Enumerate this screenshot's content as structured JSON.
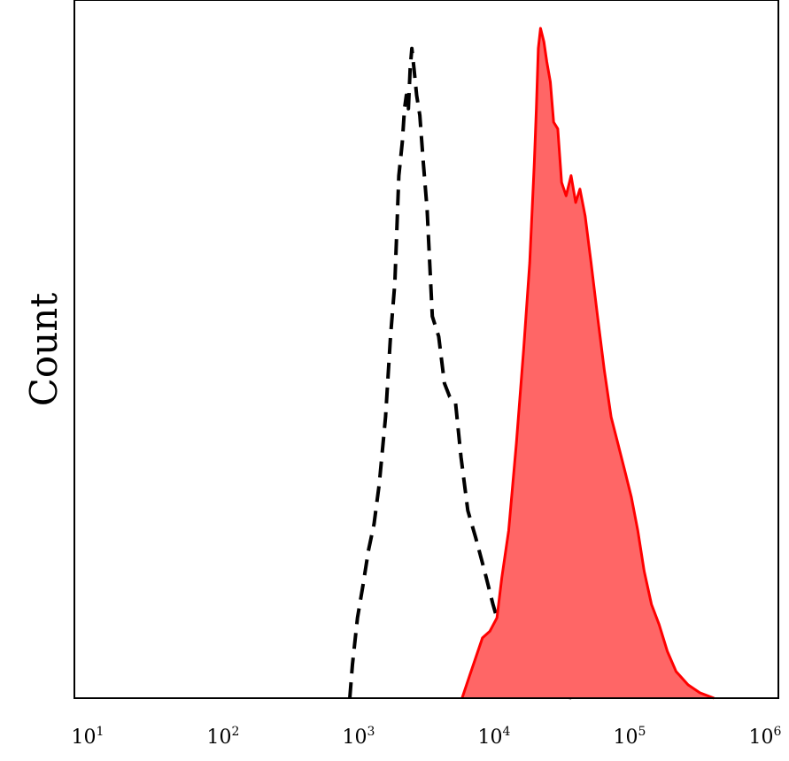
{
  "chart_data": {
    "type": "area",
    "title": "",
    "xlabel": "",
    "ylabel": "Count",
    "x_scale": "log",
    "xlim": [
      10,
      1000000
    ],
    "ylim": [
      0,
      1
    ],
    "grid": false,
    "legend": "none",
    "x_ticks": [
      {
        "value": 10,
        "base": "10",
        "exp": "1"
      },
      {
        "value": 100,
        "base": "10",
        "exp": "2"
      },
      {
        "value": 1000,
        "base": "10",
        "exp": "3"
      },
      {
        "value": 10000,
        "base": "10",
        "exp": "4"
      },
      {
        "value": 100000,
        "base": "10",
        "exp": "5"
      },
      {
        "value": 1000000,
        "base": "10",
        "exp": "6"
      }
    ],
    "series": [
      {
        "style": "dashed",
        "color": "#000000",
        "filled": false,
        "points": [
          [
            860,
            0.0
          ],
          [
            900,
            0.05
          ],
          [
            980,
            0.12
          ],
          [
            1080,
            0.17
          ],
          [
            1180,
            0.22
          ],
          [
            1300,
            0.26
          ],
          [
            1420,
            0.32
          ],
          [
            1580,
            0.42
          ],
          [
            1720,
            0.54
          ],
          [
            1850,
            0.62
          ],
          [
            1980,
            0.78
          ],
          [
            2100,
            0.83
          ],
          [
            2180,
            0.88
          ],
          [
            2250,
            0.9
          ],
          [
            2330,
            0.88
          ],
          [
            2400,
            0.94
          ],
          [
            2470,
            0.97
          ],
          [
            2560,
            0.94
          ],
          [
            2680,
            0.9
          ],
          [
            2830,
            0.87
          ],
          [
            3000,
            0.8
          ],
          [
            3200,
            0.73
          ],
          [
            3500,
            0.57
          ],
          [
            3900,
            0.54
          ],
          [
            4300,
            0.47
          ],
          [
            4700,
            0.45
          ],
          [
            5200,
            0.44
          ],
          [
            5700,
            0.36
          ],
          [
            6400,
            0.28
          ],
          [
            7300,
            0.24
          ],
          [
            8500,
            0.19
          ],
          [
            9800,
            0.14
          ],
          [
            11200,
            0.1
          ],
          [
            12500,
            0.07
          ],
          [
            14500,
            0.05
          ],
          [
            17000,
            0.03
          ],
          [
            20000,
            0.015
          ],
          [
            24000,
            0.008
          ],
          [
            30000,
            0.003
          ],
          [
            40000,
            0.0
          ]
        ]
      },
      {
        "style": "solid-filled",
        "color": "#ff0000",
        "fill": "#ff6666",
        "filled": true,
        "points": [
          [
            5800,
            0.0
          ],
          [
            6500,
            0.03
          ],
          [
            7300,
            0.06
          ],
          [
            8200,
            0.09
          ],
          [
            9300,
            0.1
          ],
          [
            10500,
            0.12
          ],
          [
            11400,
            0.18
          ],
          [
            12800,
            0.25
          ],
          [
            14600,
            0.38
          ],
          [
            16500,
            0.52
          ],
          [
            18300,
            0.65
          ],
          [
            19800,
            0.8
          ],
          [
            20500,
            0.88
          ],
          [
            21200,
            0.97
          ],
          [
            22000,
            1.0
          ],
          [
            23300,
            0.98
          ],
          [
            24500,
            0.95
          ],
          [
            26000,
            0.92
          ],
          [
            27500,
            0.86
          ],
          [
            29500,
            0.85
          ],
          [
            31500,
            0.77
          ],
          [
            34000,
            0.75
          ],
          [
            37000,
            0.78
          ],
          [
            40000,
            0.74
          ],
          [
            43000,
            0.76
          ],
          [
            47000,
            0.72
          ],
          [
            52000,
            0.65
          ],
          [
            58000,
            0.57
          ],
          [
            65000,
            0.49
          ],
          [
            73000,
            0.42
          ],
          [
            82000,
            0.38
          ],
          [
            92000,
            0.34
          ],
          [
            103000,
            0.3
          ],
          [
            115000,
            0.25
          ],
          [
            128000,
            0.19
          ],
          [
            145000,
            0.14
          ],
          [
            165000,
            0.11
          ],
          [
            190000,
            0.07
          ],
          [
            220000,
            0.04
          ],
          [
            270000,
            0.02
          ],
          [
            330000,
            0.008
          ],
          [
            420000,
            0.0
          ]
        ]
      }
    ]
  }
}
